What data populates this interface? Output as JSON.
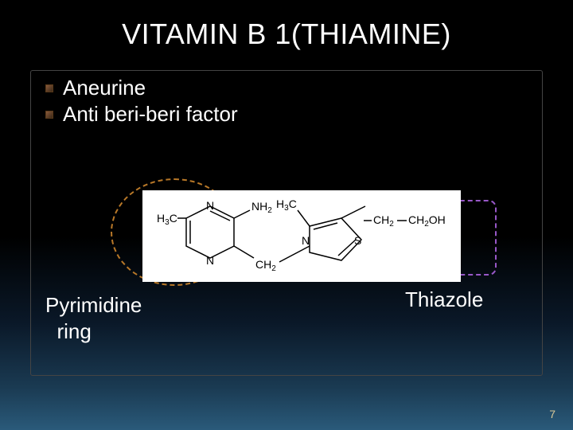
{
  "slide": {
    "title": "VITAMIN B 1(THIAMINE)",
    "bullets": [
      {
        "text": "Aneurine"
      },
      {
        "text": "Anti beri-beri factor"
      }
    ],
    "labels": {
      "pyrimidine": "Pyrimidine\n  ring",
      "thiazole": "Thiazole"
    },
    "page_number": "7"
  },
  "chem": {
    "atoms": {
      "h3c_left": "H₃C",
      "n_top": "N",
      "n_bottom": "N",
      "nh2": "NH₂",
      "ch2_bridge": "CH₂",
      "h3c_up": "H₃C",
      "n_plus": "N",
      "s": "S",
      "ch2": "CH₂",
      "ch2oh": "CH₂OH"
    }
  },
  "style": {
    "title_color": "#ffffff",
    "title_fontsize": 36,
    "body_color": "#ffffff",
    "body_fontsize": 26,
    "border_color": "#444444",
    "pyrimidine_dash_color": "#b87828",
    "thiazole_dash_color": "#9858c8",
    "bullet_gradient_top": "#8a5a3a",
    "bullet_gradient_bottom": "#3a2818",
    "page_number_color": "#d8c898",
    "background_gradient": [
      "#000000",
      "#0a1828",
      "#1a3a52",
      "#2a5a7a"
    ],
    "chem_bg": "#ffffff",
    "chem_stroke": "#000000"
  }
}
